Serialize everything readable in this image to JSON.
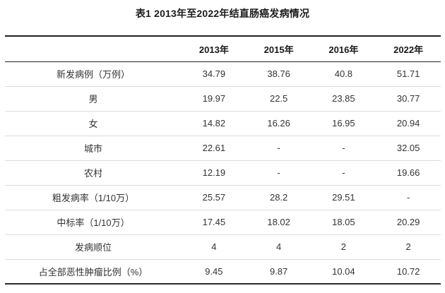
{
  "chart_data": {
    "type": "table",
    "title": "表1 2013年至2022年结直肠癌发病情况",
    "columns": [
      "2013年",
      "2015年",
      "2016年",
      "2022年"
    ],
    "rows": [
      {
        "label": "新发病例（万例）",
        "values": [
          "34.79",
          "38.76",
          "40.8",
          "51.71"
        ]
      },
      {
        "label": "男",
        "values": [
          "19.97",
          "22.5",
          "23.85",
          "30.77"
        ]
      },
      {
        "label": "女",
        "values": [
          "14.82",
          "16.26",
          "16.95",
          "20.94"
        ]
      },
      {
        "label": "城市",
        "values": [
          "22.61",
          "-",
          "-",
          "32.05"
        ]
      },
      {
        "label": "农村",
        "values": [
          "12.19",
          "-",
          "-",
          "19.66"
        ]
      },
      {
        "label": "粗发病率（1/10万）",
        "values": [
          "25.57",
          "28.2",
          "29.51",
          "-"
        ]
      },
      {
        "label": "中标率（1/10万）",
        "values": [
          "17.45",
          "18.02",
          "18.05",
          "20.29"
        ]
      },
      {
        "label": "发病顺位",
        "values": [
          "4",
          "4",
          "2",
          "2"
        ]
      },
      {
        "label": "占全部恶性肿瘤比例（%）",
        "values": [
          "9.45",
          "9.87",
          "10.04",
          "10.72"
        ]
      }
    ],
    "layout": {
      "legend": "none",
      "grid": "horizontal-separators",
      "header_row": true,
      "first_column_is_labels": true
    }
  },
  "colors": {
    "background": "#ffffff",
    "heavy_border": "#222222",
    "row_separator": "#dcdcdc",
    "title_text": "#1c1c1c",
    "header_text": "#1a1a1a",
    "body_text": "#333333"
  }
}
